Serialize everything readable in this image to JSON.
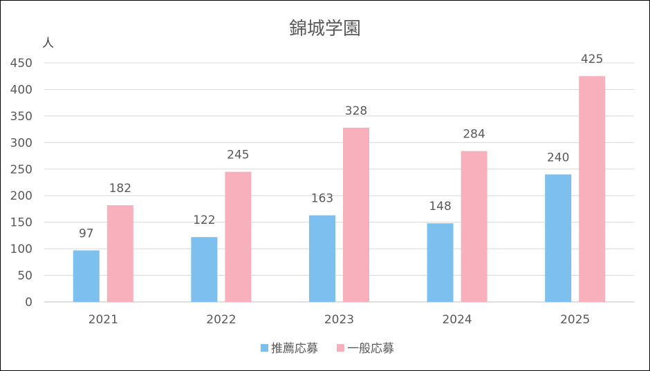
{
  "chart_data": {
    "type": "bar",
    "title": "錦城学園",
    "ylabel": "人",
    "xlabel": "",
    "categories": [
      "2021",
      "2022",
      "2023",
      "2024",
      "2025"
    ],
    "series": [
      {
        "name": "推薦応募",
        "values": [
          97,
          122,
          163,
          148,
          240
        ],
        "color": "#7dbfef"
      },
      {
        "name": "一般応募",
        "values": [
          182,
          245,
          328,
          284,
          425
        ],
        "color": "#f8b1bc"
      }
    ],
    "ylim": [
      0,
      450
    ],
    "yticks": [
      0,
      50,
      100,
      150,
      200,
      250,
      300,
      350,
      400,
      450
    ],
    "grid": true,
    "legend_position": "bottom",
    "data_labels": true
  }
}
